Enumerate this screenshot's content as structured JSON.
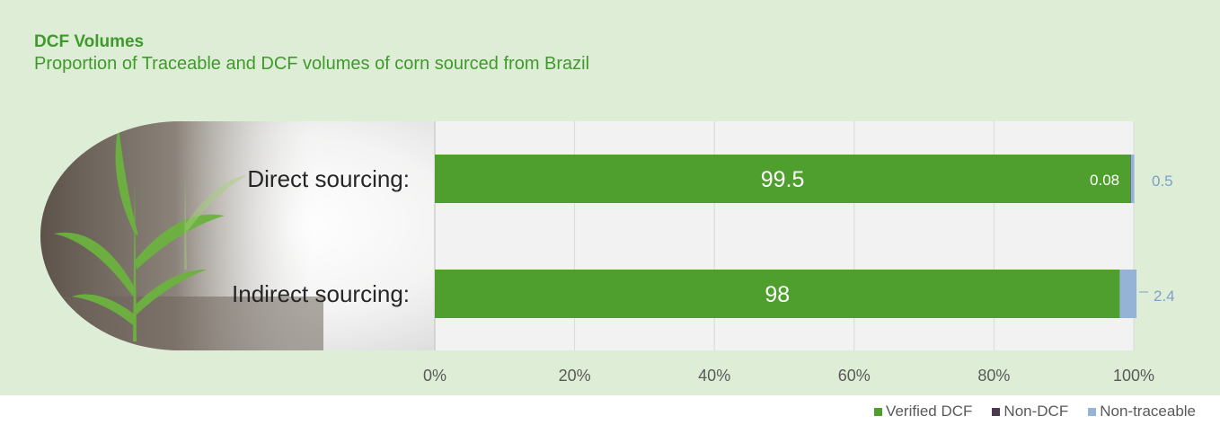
{
  "chart_data": {
    "type": "bar",
    "orientation": "horizontal",
    "stacked": true,
    "title": "DCF Volumes",
    "subtitle": "Proportion of Traceable and DCF volumes of corn sourced from Brazil",
    "categories": [
      "Direct sourcing:",
      "Indirect sourcing:"
    ],
    "series": [
      {
        "name": "Verified DCF",
        "color": "#4e9f2e",
        "values": [
          99.5,
          98
        ],
        "labels": [
          "99.5",
          "98"
        ]
      },
      {
        "name": "Non-DCF",
        "color": "#4b3a52",
        "values": [
          0.08,
          0
        ],
        "labels": [
          "0.08",
          ""
        ]
      },
      {
        "name": "Non-traceable",
        "color": "#95b3d7",
        "values": [
          0.5,
          2.4
        ],
        "labels": [
          "0.5",
          "2.4"
        ]
      }
    ],
    "xlim": [
      0,
      100
    ],
    "xticks": [
      "0%",
      "20%",
      "40%",
      "60%",
      "80%",
      "100%"
    ],
    "grid": true,
    "legend_position": "bottom-right"
  }
}
